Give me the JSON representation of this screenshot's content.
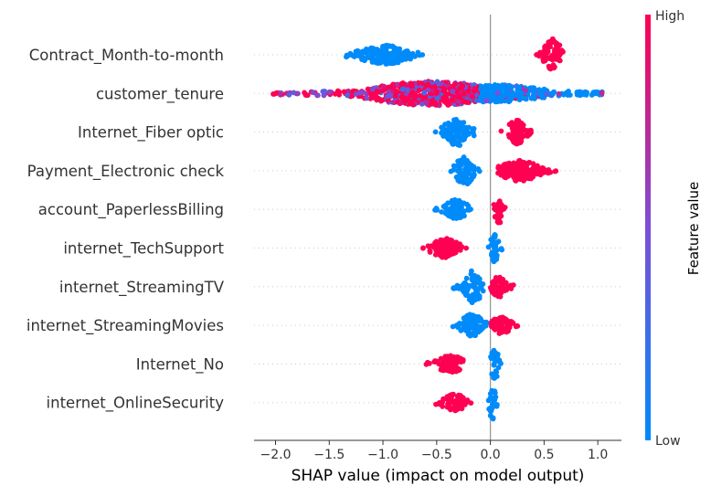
{
  "chart_data": {
    "type": "scatter",
    "subtype": "shap-beeswarm",
    "title": "",
    "xlabel": "SHAP value (impact on model output)",
    "ylabel": "",
    "xlim": [
      -2.2,
      1.22
    ],
    "xticks": [
      {
        "value": -2.0,
        "label": "−2.0"
      },
      {
        "value": -1.5,
        "label": "−1.5"
      },
      {
        "value": -1.0,
        "label": "−1.0"
      },
      {
        "value": -0.5,
        "label": "−0.5"
      },
      {
        "value": 0.0,
        "label": "0.0"
      },
      {
        "value": 0.5,
        "label": "0.5"
      },
      {
        "value": 1.0,
        "label": "1.0"
      }
    ],
    "colorbar": {
      "label": "Feature value",
      "high_label": "High",
      "low_label": "Low",
      "low_color": "#008bfb",
      "mid_color": "#7c4fd6",
      "high_color": "#ff0052"
    },
    "features": [
      {
        "name": "Contract_Month-to-month",
        "low_range": [
          -1.35,
          -0.63
        ],
        "low_center": -0.98,
        "low_spread": 9,
        "high_range": [
          0.42,
          0.68
        ],
        "high_center": 0.58,
        "high_spread": 16
      },
      {
        "name": "customer_tenure",
        "high_range": [
          -2.03,
          -0.12
        ],
        "high_center": -0.55,
        "high_spread": 12,
        "low_range": [
          -0.35,
          1.08
        ],
        "low_center": 0.05,
        "low_spread": 8
      },
      {
        "name": "Internet_Fiber optic",
        "low_range": [
          -0.52,
          -0.14
        ],
        "low_center": -0.32,
        "low_spread": 14,
        "high_range": [
          0.1,
          0.38
        ],
        "high_center": 0.24,
        "high_spread": 12
      },
      {
        "name": "Payment_Electronic check",
        "low_range": [
          -0.38,
          -0.1
        ],
        "low_center": -0.24,
        "low_spread": 14,
        "high_range": [
          0.06,
          0.62
        ],
        "high_center": 0.27,
        "high_spread": 10
      },
      {
        "name": "account_PaperlessBilling",
        "low_range": [
          -0.52,
          -0.18
        ],
        "low_center": -0.32,
        "low_spread": 9,
        "high_range": [
          0.02,
          0.14
        ],
        "high_center": 0.08,
        "high_spread": 16
      },
      {
        "name": "internet_TechSupport",
        "high_range": [
          -0.63,
          -0.21
        ],
        "high_center": -0.42,
        "high_spread": 9,
        "low_range": [
          -0.02,
          0.11
        ],
        "low_center": 0.04,
        "low_spread": 15
      },
      {
        "name": "internet_StreamingTV",
        "low_range": [
          -0.35,
          -0.05
        ],
        "low_center": -0.16,
        "low_spread": 16,
        "high_range": [
          0.0,
          0.22
        ],
        "high_center": 0.08,
        "high_spread": 10
      },
      {
        "name": "internet_StreamingMovies",
        "low_range": [
          -0.35,
          -0.02
        ],
        "low_center": -0.17,
        "low_spread": 11,
        "high_range": [
          0.0,
          0.28
        ],
        "high_center": 0.1,
        "high_spread": 8
      },
      {
        "name": "Internet_No",
        "high_range": [
          -0.6,
          -0.25
        ],
        "high_center": -0.37,
        "high_spread": 9,
        "low_range": [
          -0.03,
          0.1
        ],
        "low_center": 0.04,
        "low_spread": 17
      },
      {
        "name": "internet_OnlineSecurity",
        "high_range": [
          -0.52,
          -0.18
        ],
        "high_center": -0.33,
        "high_spread": 8,
        "low_range": [
          -0.03,
          0.08
        ],
        "low_center": 0.02,
        "low_spread": 17
      }
    ]
  }
}
